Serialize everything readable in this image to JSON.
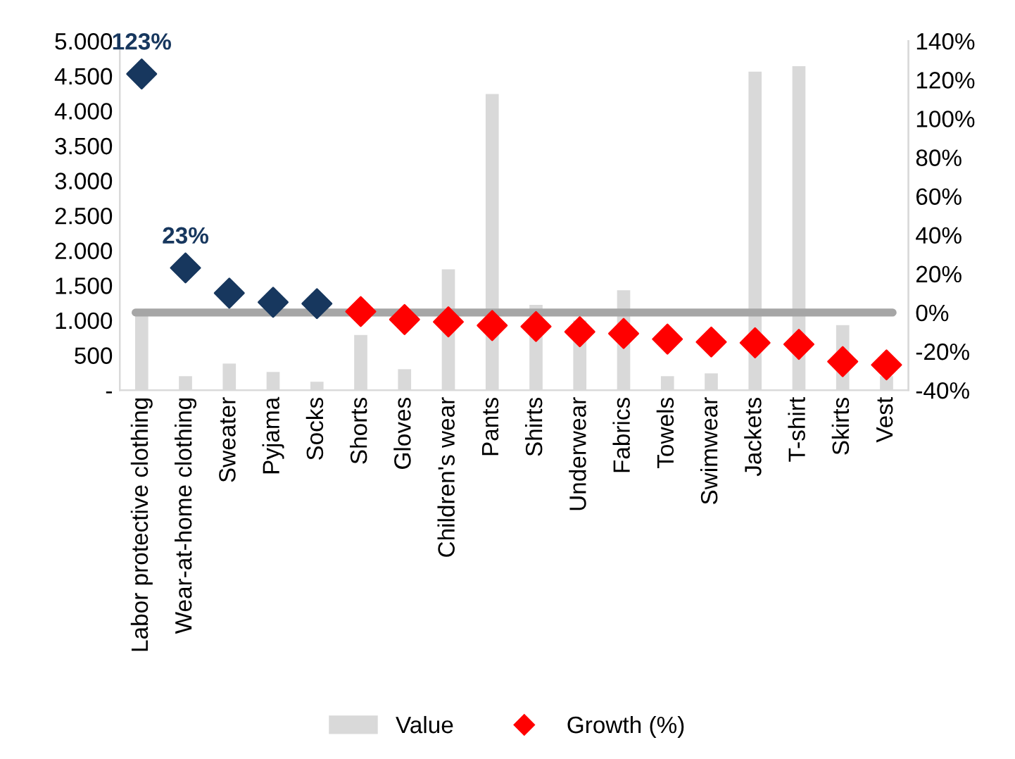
{
  "chart_data": {
    "type": "bar",
    "categories": [
      "Labor protective clothing",
      "Wear-at-home clothing",
      "Sweater",
      "Pyjama",
      "Socks",
      "Shorts",
      "Gloves",
      "Children's wear",
      "Pants",
      "Shirts",
      "Underwear",
      "Fabrics",
      "Towels",
      "Swimwear",
      "Jackets",
      "T-shirt",
      "Skirts",
      "Vest"
    ],
    "series": [
      {
        "name": "Value",
        "color": "#d9d9d9",
        "values": [
          1060,
          200,
          380,
          260,
          120,
          790,
          300,
          1730,
          4240,
          1220,
          1000,
          1430,
          200,
          240,
          4560,
          4640,
          930,
          200
        ]
      },
      {
        "name": "Growth (%)",
        "type": "scatter",
        "axis": "y2",
        "color": "#ff0000",
        "colors": [
          "#17375e",
          "#17375e",
          "#17375e",
          "#17375e",
          "#17375e",
          "#ff0000",
          "#ff0000",
          "#ff0000",
          "#ff0000",
          "#ff0000",
          "#ff0000",
          "#ff0000",
          "#ff0000",
          "#ff0000",
          "#ff0000",
          "#ff0000",
          "#ff0000",
          "#ff0000"
        ],
        "marker": "diamond",
        "values": [
          123,
          23,
          10,
          5.3,
          4.6,
          0.5,
          -3.6,
          -4.8,
          -6.7,
          -7.2,
          -9.9,
          -10.8,
          -13.7,
          -15.2,
          -15.6,
          -16.4,
          -25.3,
          -27
        ],
        "value_labels": [
          "123%",
          "23%",
          null,
          null,
          null,
          null,
          null,
          null,
          null,
          null,
          null,
          null,
          null,
          null,
          null,
          null,
          null,
          null
        ]
      }
    ],
    "ylim": [
      0,
      5000
    ],
    "yticks": [
      {
        "value": 0,
        "label": "-"
      },
      {
        "value": 500,
        "label": "500"
      },
      {
        "value": 1000,
        "label": "1.000"
      },
      {
        "value": 1500,
        "label": "1.500"
      },
      {
        "value": 2000,
        "label": "2.000"
      },
      {
        "value": 2500,
        "label": "2.500"
      },
      {
        "value": 3000,
        "label": "3.000"
      },
      {
        "value": 3500,
        "label": "3.500"
      },
      {
        "value": 4000,
        "label": "4.000"
      },
      {
        "value": 4500,
        "label": "4.500"
      },
      {
        "value": 5000,
        "label": "5.000"
      }
    ],
    "y2lim": [
      -40,
      140
    ],
    "y2ticks": [
      {
        "value": -40,
        "label": "-40%"
      },
      {
        "value": -20,
        "label": "-20%"
      },
      {
        "value": 0,
        "label": "0%"
      },
      {
        "value": 20,
        "label": "20%"
      },
      {
        "value": 40,
        "label": "40%"
      },
      {
        "value": 60,
        "label": "60%"
      },
      {
        "value": 80,
        "label": "80%"
      },
      {
        "value": 100,
        "label": "100%"
      },
      {
        "value": 120,
        "label": "120%"
      },
      {
        "value": 140,
        "label": "140%"
      }
    ],
    "ref_lines": [
      {
        "axis": "y2",
        "value": 0,
        "color": "#a6a6a6"
      }
    ],
    "grid": false,
    "legend": "bottom"
  }
}
